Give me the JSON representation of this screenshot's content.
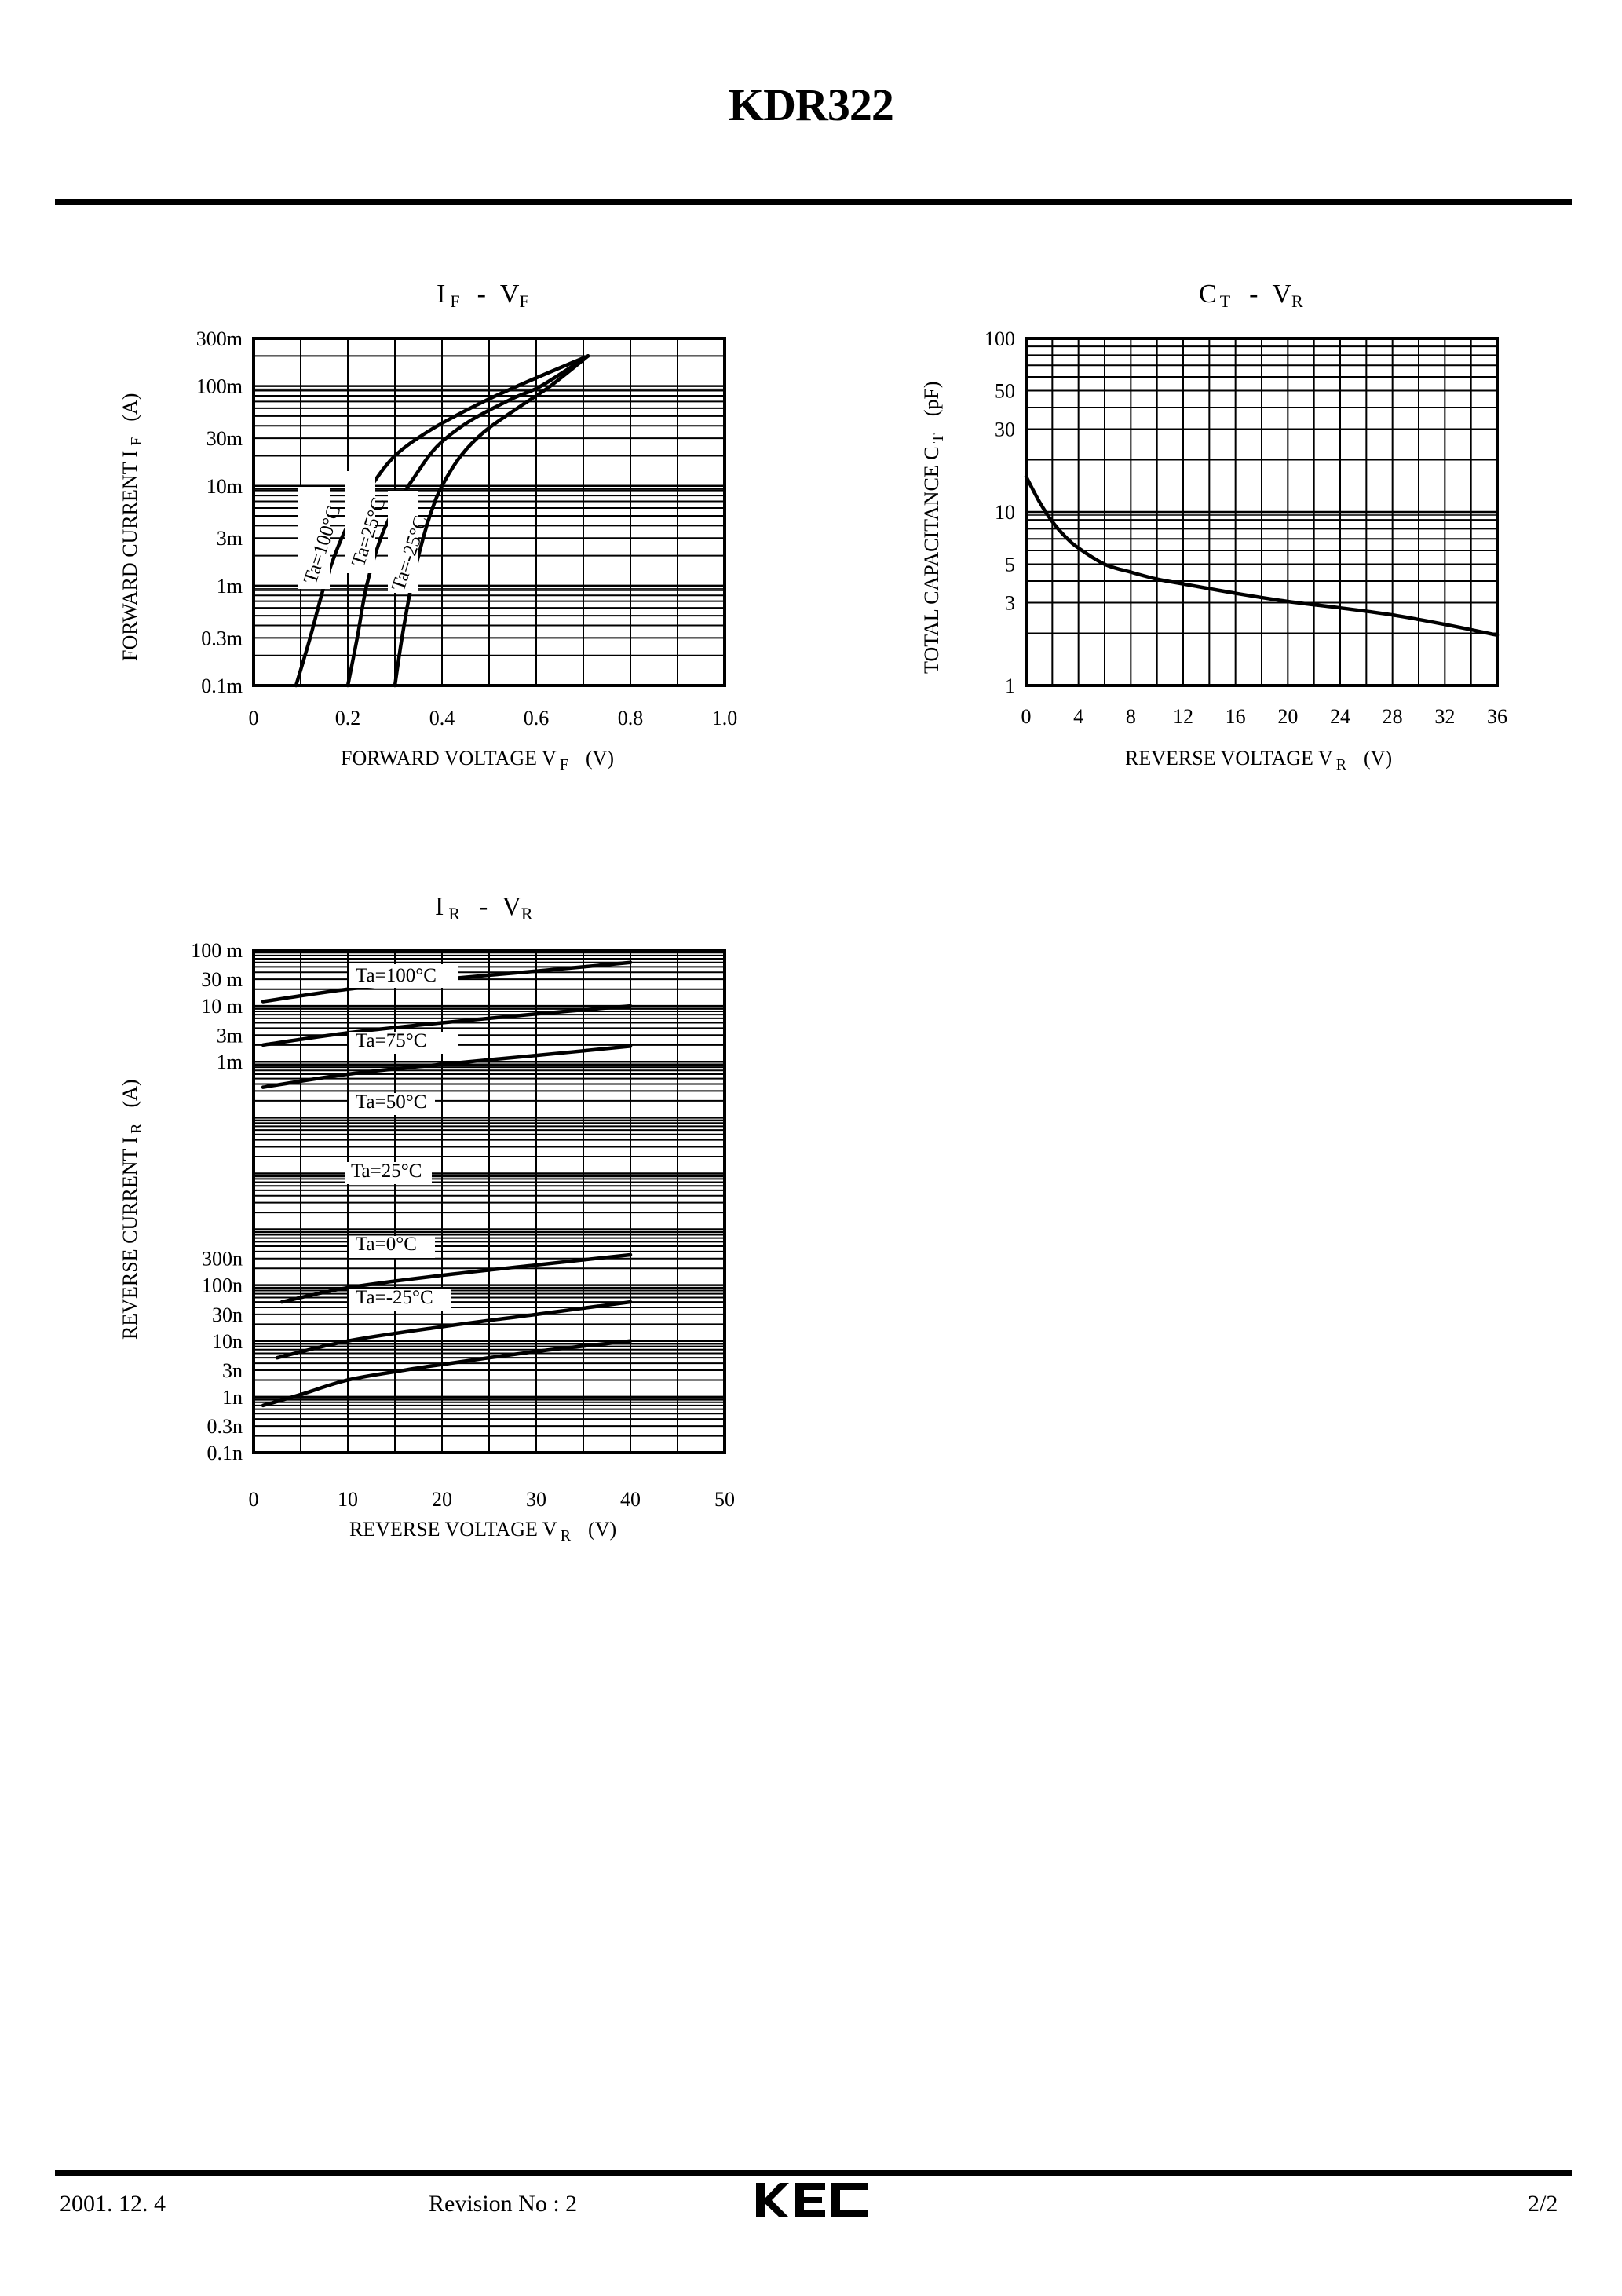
{
  "header": {
    "title": "KDR322"
  },
  "footer": {
    "date": "2001. 12. 4",
    "revision": "Revision No : 2",
    "logo": "KEC",
    "page": "2/2"
  },
  "chart_data": [
    {
      "id": "if-vf",
      "type": "line",
      "title": "IF - VF",
      "title_main_1": "I",
      "title_sub_1": "F",
      "title_dash": "-",
      "title_main_2": "V",
      "title_sub_2": "F",
      "xlabel": "FORWARD VOLTAGE VF (V)",
      "xlabel_main": "FORWARD VOLTAGE V",
      "xlabel_sub": "F",
      "xlabel_unit": "(V)",
      "ylabel": "FORWARD CURRENT IF (A)",
      "ylabel_main": "FORWARD CURRENT I",
      "ylabel_sub": "F",
      "ylabel_unit": "(A)",
      "xscale": "linear",
      "yscale": "log",
      "xlim": [
        0,
        1.0
      ],
      "ylim": [
        0.0001,
        0.3
      ],
      "xticks": [
        "0",
        "0.2",
        "0.4",
        "0.6",
        "0.8",
        "1.0"
      ],
      "yticks": [
        "0.1m",
        "0.3m",
        "1m",
        "3m",
        "10m",
        "30m",
        "100m",
        "300m"
      ],
      "grid": true,
      "series": [
        {
          "name": "Ta=100°C",
          "label_main": "Ta=100",
          "label_unit": "°C",
          "x": [
            0.09,
            0.12,
            0.15,
            0.18,
            0.21,
            0.25,
            0.3,
            0.37,
            0.46,
            0.56,
            0.71
          ],
          "y": [
            0.0001,
            0.0003,
            0.001,
            0.0025,
            0.005,
            0.01,
            0.02,
            0.035,
            0.06,
            0.1,
            0.2
          ]
        },
        {
          "name": "Ta=25°C",
          "label_main": "Ta=25",
          "label_unit": "°C",
          "x": [
            0.2,
            0.22,
            0.24,
            0.27,
            0.3,
            0.34,
            0.39,
            0.46,
            0.55,
            0.61,
            0.71
          ],
          "y": [
            0.0001,
            0.0003,
            0.001,
            0.003,
            0.006,
            0.012,
            0.025,
            0.045,
            0.075,
            0.1,
            0.2
          ]
        },
        {
          "name": "Ta=-25°C",
          "label_main": "Ta=-25",
          "label_unit": "°C",
          "x": [
            0.3,
            0.315,
            0.335,
            0.36,
            0.38,
            0.4,
            0.44,
            0.49,
            0.56,
            0.63,
            0.71
          ],
          "y": [
            0.0001,
            0.0003,
            0.001,
            0.003,
            0.006,
            0.01,
            0.02,
            0.035,
            0.06,
            0.1,
            0.2
          ]
        }
      ]
    },
    {
      "id": "ct-vr",
      "type": "line",
      "title": "CT - VR",
      "title_main_1": "C",
      "title_sub_1": "T",
      "title_dash": "-",
      "title_main_2": "V",
      "title_sub_2": "R",
      "xlabel": "REVERSE VOLTAGE VR (V)",
      "xlabel_main": "REVERSE VOLTAGE V",
      "xlabel_sub": "R",
      "xlabel_unit": "(V)",
      "ylabel": "TOTAL CAPACITANCE CT (pF)",
      "ylabel_main": "TOTAL CAPACITANCE C",
      "ylabel_sub": "T",
      "ylabel_unit": "(pF)",
      "xscale": "linear",
      "yscale": "log",
      "xlim": [
        0,
        36
      ],
      "ylim": [
        1,
        100
      ],
      "xticks": [
        "0",
        "4",
        "8",
        "12",
        "16",
        "20",
        "24",
        "28",
        "32",
        "36"
      ],
      "yticks": [
        "1",
        "3",
        "5",
        "10",
        "30",
        "50",
        "100"
      ],
      "grid": true,
      "series": [
        {
          "name": "CT",
          "x": [
            0,
            1,
            2,
            3,
            4,
            6,
            8,
            10,
            12,
            16,
            20,
            24,
            28,
            32,
            36
          ],
          "y": [
            16,
            11.5,
            8.8,
            7.2,
            6.2,
            5.0,
            4.5,
            4.1,
            3.85,
            3.4,
            3.05,
            2.8,
            2.55,
            2.25,
            1.95
          ]
        }
      ]
    },
    {
      "id": "ir-vr",
      "type": "line",
      "title": "IR - VR",
      "title_main_1": "I",
      "title_sub_1": "R",
      "title_dash": "-",
      "title_main_2": "V",
      "title_sub_2": "R",
      "xlabel": "REVERSE VOLTAGE VR (V)",
      "xlabel_main": "REVERSE VOLTAGE V",
      "xlabel_sub": "R",
      "xlabel_unit": "(V)",
      "ylabel": "REVERSE CURRENT IR (A)",
      "ylabel_main": "REVERSE CURRENT I",
      "ylabel_sub": "R",
      "ylabel_unit": "(A)",
      "xscale": "linear",
      "yscale": "log",
      "xlim": [
        0,
        50
      ],
      "ylim": [
        1e-10,
        0.1
      ],
      "xticks": [
        "0",
        "10",
        "20",
        "30",
        "40",
        "50"
      ],
      "yticks": [
        "0.1n",
        "0.3n",
        "1n",
        "3n",
        "10n",
        "30n",
        "100n",
        "300n",
        "1m",
        "3m",
        "10 m",
        "30 m",
        "100 m"
      ],
      "grid": true,
      "series": [
        {
          "name": "Ta=100°C",
          "label_main": "Ta=100",
          "label_unit": "°C",
          "x": [
            1,
            10,
            20,
            30,
            40
          ],
          "y": [
            0.012,
            0.02,
            0.03,
            0.042,
            0.06
          ]
        },
        {
          "name": "Ta=75°C",
          "label_main": "Ta=75",
          "label_unit": "°C",
          "x": [
            1,
            10,
            20,
            30,
            40
          ],
          "y": [
            0.002,
            0.0033,
            0.005,
            0.0072,
            0.01
          ]
        },
        {
          "name": "Ta=50°C",
          "label_main": "Ta=50",
          "label_unit": "°C",
          "x": [
            1,
            10,
            20,
            30,
            40
          ],
          "y": [
            0.00035,
            0.0006,
            0.0009,
            0.0013,
            0.0019
          ]
        },
        {
          "name": "Ta=25°C",
          "label_main": "Ta=25",
          "label_unit": "°C",
          "x": [
            3,
            10,
            20,
            30,
            40
          ],
          "y": [
            5e-08,
            9e-08,
            1.5e-07,
            2.3e-07,
            3.5e-07
          ]
        },
        {
          "name": "Ta=0°C",
          "label_main": "Ta=0",
          "label_unit": "°C",
          "x": [
            2.5,
            10,
            20,
            30,
            40
          ],
          "y": [
            5e-09,
            1e-08,
            1.8e-08,
            3e-08,
            5e-08
          ]
        },
        {
          "name": "Ta=-25°C",
          "label_main": "Ta=-25",
          "label_unit": "°C",
          "x": [
            1,
            5,
            10,
            16,
            20,
            30,
            40
          ],
          "y": [
            7e-10,
            1.1e-09,
            2e-09,
            3e-09,
            3.8e-09,
            6.5e-09,
            1e-08
          ]
        }
      ]
    }
  ]
}
